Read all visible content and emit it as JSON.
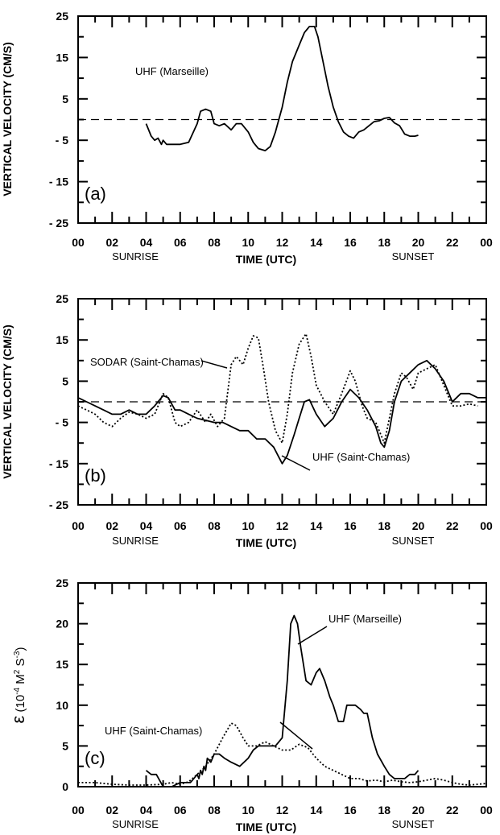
{
  "chart_data": [
    {
      "type": "line",
      "panel": "(a)",
      "ylabel": "VERTICAL VELOCITY  (CM/S)",
      "xlabel": "TIME (UTC)",
      "xlim": [
        0,
        24
      ],
      "ylim": [
        -25,
        25
      ],
      "yticks": [
        -25,
        -15,
        -5,
        5,
        15,
        25
      ],
      "xtick_labels": [
        "00",
        "02",
        "04",
        "06",
        "08",
        "10",
        "12",
        "14",
        "16",
        "18",
        "20",
        "22",
        "00"
      ],
      "sub_labels": {
        "left": "SUNRISE",
        "right": "SUNSET"
      },
      "reference_line": 0,
      "annotations": [
        {
          "text": "UHF  (Marseille)"
        }
      ],
      "series": [
        {
          "style": "solid",
          "x": [
            4.0,
            4.3,
            4.5,
            4.7,
            4.9,
            5.0,
            5.2,
            5.5,
            6.0,
            6.5,
            7.0,
            7.2,
            7.5,
            7.8,
            8.0,
            8.3,
            8.6,
            9.0,
            9.3,
            9.6,
            10.0,
            10.3,
            10.6,
            11.0,
            11.3,
            11.6,
            12.0,
            12.3,
            12.6,
            13.0,
            13.3,
            13.6,
            13.9,
            14.1,
            14.4,
            14.7,
            15.0,
            15.3,
            15.6,
            15.9,
            16.2,
            16.5,
            16.8,
            17.1,
            17.4,
            17.7,
            18.0,
            18.3,
            18.6,
            18.9,
            19.2,
            19.5,
            19.8,
            20.0
          ],
          "y": [
            -1,
            -4,
            -5,
            -4.5,
            -6,
            -5,
            -6,
            -6,
            -6,
            -5.5,
            -1,
            2,
            2.5,
            2,
            -1,
            -1.5,
            -1,
            -2.5,
            -1,
            -1,
            -3,
            -5.5,
            -7,
            -7.5,
            -6.5,
            -3,
            3,
            9,
            14,
            18,
            21,
            22.5,
            22.5,
            20,
            14,
            8,
            3,
            -0.5,
            -3,
            -4,
            -4.5,
            -3,
            -2.5,
            -1.5,
            -0.5,
            -0.3,
            0.3,
            0.5,
            -0.8,
            -1.5,
            -3.5,
            -4,
            -4,
            -3.8
          ]
        }
      ]
    },
    {
      "type": "line",
      "panel": "(b)",
      "ylabel": "VERTICAL VELOCITY  (CM/S)",
      "xlabel": "TIME (UTC)",
      "xlim": [
        0,
        24
      ],
      "ylim": [
        -25,
        25
      ],
      "yticks": [
        -25,
        -15,
        -5,
        5,
        15,
        25
      ],
      "xtick_labels": [
        "00",
        "02",
        "04",
        "06",
        "08",
        "10",
        "12",
        "14",
        "16",
        "18",
        "20",
        "22",
        "00"
      ],
      "sub_labels": {
        "left": "SUNRISE",
        "right": "SUNSET"
      },
      "reference_line": 0,
      "annotations": [
        {
          "text": "SODAR  (Saint-Chamas)"
        },
        {
          "text": "UHF   (Saint-Chamas)"
        }
      ],
      "series": [
        {
          "style": "solid",
          "x": [
            0,
            0.5,
            1,
            1.5,
            2,
            2.5,
            3,
            3.5,
            4,
            4.5,
            5,
            5.3,
            5.7,
            6,
            6.5,
            7,
            7.5,
            8,
            8.5,
            9,
            9.5,
            10,
            10.5,
            11,
            11.5,
            12,
            12.3,
            12.7,
            13,
            13.3,
            13.6,
            14,
            14.5,
            15,
            15.5,
            16,
            16.5,
            17,
            17.5,
            17.8,
            18,
            18.3,
            18.6,
            19,
            19.5,
            20,
            20.5,
            21,
            21.5,
            22,
            22.5,
            23,
            23.5,
            24
          ],
          "y": [
            1,
            0,
            -1,
            -2,
            -3,
            -3,
            -2,
            -3,
            -3,
            -1,
            1.5,
            1,
            -2,
            -2,
            -3,
            -4,
            -4.5,
            -5,
            -5,
            -6,
            -7,
            -7,
            -9,
            -9,
            -11,
            -15,
            -13,
            -8,
            -4,
            0,
            0.5,
            -3,
            -6,
            -4,
            0,
            3,
            1,
            -2,
            -6,
            -10,
            -11,
            -7,
            0,
            5,
            7,
            9,
            10,
            8,
            5,
            0,
            2,
            2,
            1,
            1
          ]
        },
        {
          "style": "dotted",
          "x": [
            0,
            0.5,
            1,
            1.5,
            2,
            2.5,
            3,
            3.5,
            4,
            4.5,
            5,
            5.3,
            5.7,
            6,
            6.5,
            7,
            7.5,
            7.8,
            8.2,
            8.6,
            9,
            9.3,
            9.7,
            10,
            10.3,
            10.6,
            10.9,
            11.2,
            11.6,
            12,
            12.3,
            12.6,
            13,
            13.4,
            13.7,
            14,
            14.5,
            15,
            15.5,
            16,
            16.3,
            16.7,
            17,
            17.5,
            18,
            18.3,
            18.6,
            19,
            19.3,
            19.7,
            20,
            20.5,
            21,
            21.5,
            22,
            22.5,
            23,
            23.5
          ],
          "y": [
            -1,
            -2,
            -3,
            -5,
            -6,
            -4,
            -2.5,
            -3,
            -4,
            -3,
            2,
            1,
            -5,
            -6,
            -5,
            -2,
            -5,
            -3,
            -6,
            -4,
            9,
            11,
            9,
            13,
            16,
            15.5,
            8,
            0,
            -7,
            -10,
            -3,
            7,
            14,
            16.5,
            11,
            4,
            0,
            -3,
            2,
            7.5,
            5,
            -1,
            -4,
            -5,
            -10,
            -4,
            2,
            7,
            6,
            3,
            7,
            8,
            9,
            4,
            -1,
            -1,
            -0.5,
            -1
          ]
        }
      ]
    },
    {
      "type": "line",
      "panel": "(c)",
      "ylabel": "ε  (10-4 M2 S-3)",
      "ylabel_parts": {
        "symbol": "ε",
        "open": "(10",
        "exp1": "-4",
        "unit1": " M",
        "exp2": "2",
        "unit2": " S",
        "exp3": "-3",
        "close": ")"
      },
      "xlabel": "TIME (UTC)",
      "xlim": [
        0,
        24
      ],
      "ylim": [
        0,
        25
      ],
      "yticks": [
        0,
        5,
        10,
        15,
        20,
        25
      ],
      "xtick_labels": [
        "00",
        "02",
        "04",
        "06",
        "08",
        "10",
        "12",
        "14",
        "16",
        "18",
        "20",
        "22",
        "00"
      ],
      "sub_labels": {
        "left": "SUNRISE",
        "right": "SUNSET"
      },
      "annotations": [
        {
          "text": "UHF   (Marseille)"
        },
        {
          "text": "UHF   (Saint-Chamas)"
        }
      ],
      "series": [
        {
          "style": "solid",
          "x": [
            4.0,
            4.3,
            4.6,
            5.0,
            5.5,
            6.0,
            6.3,
            6.6,
            6.8,
            7.0,
            7.1,
            7.2,
            7.3,
            7.4,
            7.5,
            7.6,
            7.8,
            8.0,
            8.3,
            8.6,
            9.0,
            9.5,
            10.0,
            10.3,
            10.6,
            11.0,
            11.3,
            11.6,
            12.0,
            12.3,
            12.5,
            12.7,
            12.9,
            13.1,
            13.4,
            13.7,
            14.0,
            14.2,
            14.5,
            14.8,
            15.0,
            15.3,
            15.6,
            15.8,
            16.0,
            16.3,
            16.6,
            16.8,
            17.0,
            17.3,
            17.6,
            18.0,
            18.3,
            18.6,
            18.9,
            19.2,
            19.5,
            19.8,
            20.0
          ],
          "y": [
            2,
            1.5,
            1.5,
            0,
            0,
            0.5,
            0.5,
            0.5,
            1,
            1.5,
            1,
            2,
            1.5,
            2.5,
            2,
            3.5,
            3,
            4,
            4,
            3.5,
            3,
            2.5,
            3.5,
            4.5,
            5,
            5,
            5,
            5,
            6,
            13,
            20,
            21,
            20,
            17,
            13,
            12.5,
            14,
            14.5,
            13,
            11,
            10,
            8,
            8,
            10,
            10,
            10,
            9.5,
            9,
            9,
            6,
            4,
            2.5,
            1.5,
            1,
            1,
            1,
            1.5,
            1.5,
            2
          ]
        },
        {
          "style": "dotted",
          "x": [
            0,
            1,
            2,
            3,
            4,
            5,
            5.5,
            6,
            6.5,
            7,
            7.5,
            8,
            8.5,
            9,
            9.3,
            9.7,
            10,
            10.5,
            11,
            11.5,
            12,
            12.5,
            13,
            13.5,
            14,
            14.5,
            15,
            15.5,
            16,
            16.5,
            17,
            17.5,
            18,
            18.5,
            19,
            19.5,
            20,
            20.5,
            21,
            21.5,
            22,
            22.5,
            23,
            23.5,
            24
          ],
          "y": [
            0.5,
            0.5,
            0.3,
            0.2,
            0.2,
            0.3,
            0.5,
            0.3,
            0.6,
            1.5,
            2.5,
            4,
            6,
            7.8,
            7.5,
            6,
            5,
            5,
            5.5,
            5,
            4.5,
            4.5,
            5.2,
            4.8,
            3.5,
            2.5,
            2,
            1.5,
            1,
            1,
            0.7,
            0.8,
            0.6,
            0.8,
            0.6,
            0.5,
            0.6,
            0.8,
            1,
            0.8,
            0.5,
            0.3,
            0.2,
            0.3,
            0.4
          ]
        }
      ]
    }
  ]
}
